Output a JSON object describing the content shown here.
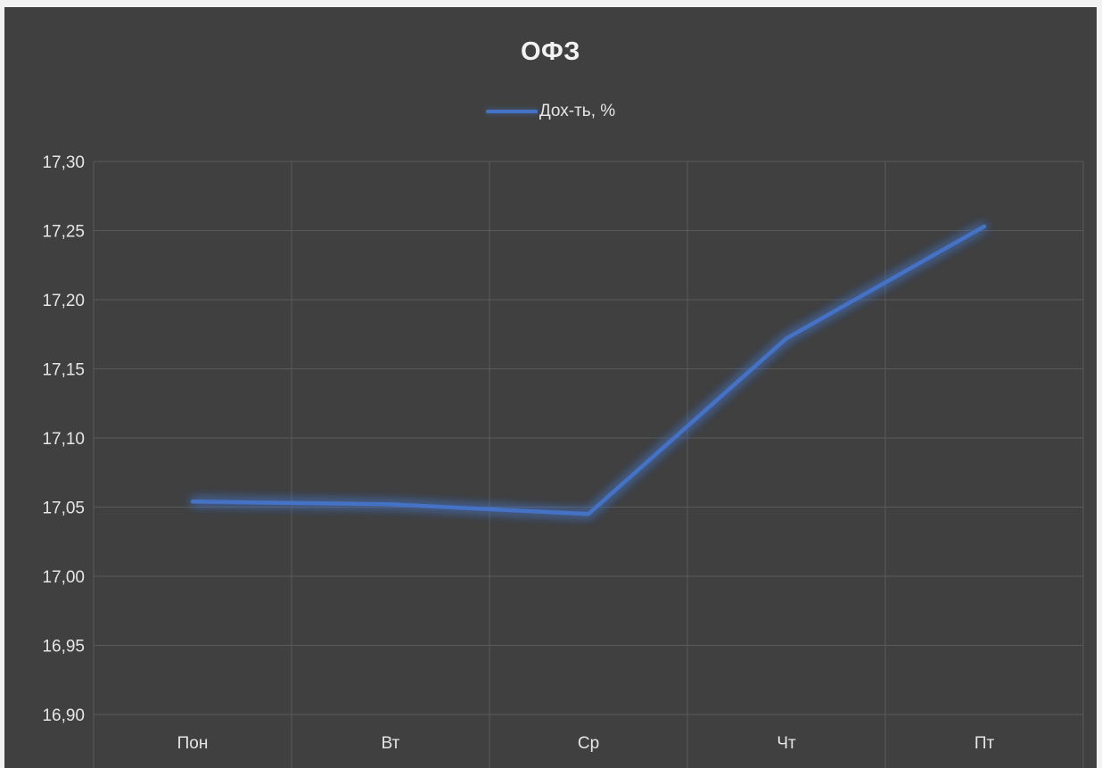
{
  "colors": {
    "background": "#404040",
    "gridline": "#5a5a5a",
    "text": "#e6e6e6",
    "series": "#4472c4"
  },
  "chart_data": {
    "type": "line",
    "title": "ОФЗ",
    "xlabel": "",
    "ylabel": "",
    "categories": [
      "Пон",
      "Вт",
      "Ср",
      "Чт",
      "Пт"
    ],
    "series": [
      {
        "name": "Дох-ть, %",
        "color": "#4472c4",
        "values": [
          17.054,
          17.052,
          17.045,
          17.172,
          17.253
        ]
      }
    ],
    "ylim": [
      16.9,
      17.3
    ],
    "yticks": [
      "17,30",
      "17,25",
      "17,20",
      "17,15",
      "17,10",
      "17,05",
      "17,00",
      "16,95",
      "16,90"
    ],
    "grid": true,
    "legend_position": "top-center"
  }
}
